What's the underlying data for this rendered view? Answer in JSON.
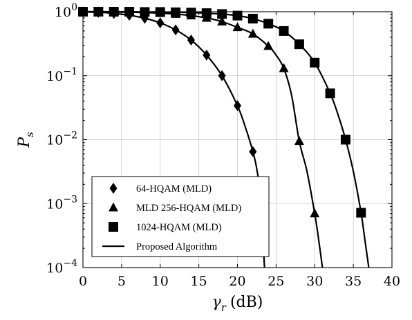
{
  "chart_data": {
    "type": "line",
    "title": "",
    "xlabel": {
      "main": "γ",
      "sub": "r",
      "unit": "(dB)"
    },
    "ylabel": {
      "main": "P",
      "sub": "s"
    },
    "x_ticks": [
      0,
      5,
      10,
      15,
      20,
      25,
      30,
      35,
      40
    ],
    "y_ticks": [
      {
        "value": 0.0001,
        "base": "10",
        "exp": "−4"
      },
      {
        "value": 0.001,
        "base": "10",
        "exp": "−3"
      },
      {
        "value": 0.01,
        "base": "10",
        "exp": "−2"
      },
      {
        "value": 0.1,
        "base": "10",
        "exp": "−1"
      },
      {
        "value": 1,
        "base": "10",
        "exp": "0"
      }
    ],
    "xlim": [
      0,
      40
    ],
    "ylim": [
      0.0001,
      1
    ],
    "yscale": "log",
    "grid": true,
    "legend_position": "bottom-left",
    "series": [
      {
        "name": "64-HQAM (MLD)",
        "marker": "diamond",
        "x": [
          0,
          2,
          4,
          6,
          8,
          10,
          12,
          14,
          16,
          18,
          20,
          22
        ],
        "y": [
          0.99,
          0.98,
          0.94,
          0.88,
          0.79,
          0.67,
          0.52,
          0.36,
          0.21,
          0.1,
          0.034,
          0.0065
        ],
        "curve": {
          "x": [
            0,
            2,
            4,
            6,
            8,
            10,
            12,
            14,
            16,
            18,
            20,
            21,
            22,
            22.5,
            23,
            23.5
          ],
          "y": [
            0.99,
            0.98,
            0.94,
            0.88,
            0.79,
            0.67,
            0.52,
            0.36,
            0.21,
            0.1,
            0.034,
            0.016,
            0.0065,
            0.0035,
            0.0012,
            0.0001
          ]
        }
      },
      {
        "name": "MLD 256-HQAM (MLD)",
        "marker": "triangle",
        "x": [
          0,
          2,
          4,
          6,
          8,
          10,
          12,
          14,
          16,
          18,
          20,
          22,
          24,
          26,
          28,
          30
        ],
        "y": [
          1,
          1,
          0.99,
          0.98,
          0.97,
          0.95,
          0.92,
          0.87,
          0.8,
          0.7,
          0.57,
          0.45,
          0.29,
          0.13,
          0.0095,
          0.0007
        ],
        "curve": {
          "x": [
            0,
            2,
            4,
            6,
            8,
            10,
            12,
            14,
            16,
            18,
            20,
            22,
            24,
            25,
            26,
            27,
            28,
            29,
            30,
            30.5,
            31
          ],
          "y": [
            1,
            1,
            0.99,
            0.98,
            0.97,
            0.95,
            0.92,
            0.87,
            0.8,
            0.7,
            0.57,
            0.45,
            0.29,
            0.21,
            0.13,
            0.05,
            0.0095,
            0.0032,
            0.0007,
            0.00028,
            0.0001
          ]
        }
      },
      {
        "name": "1024-HQAM (MLD)",
        "marker": "square",
        "x": [
          0,
          2,
          4,
          6,
          8,
          10,
          12,
          14,
          16,
          18,
          20,
          22,
          24,
          26,
          28,
          30,
          32,
          34,
          36
        ],
        "y": [
          1,
          1,
          1,
          1,
          0.99,
          0.99,
          0.98,
          0.97,
          0.95,
          0.92,
          0.87,
          0.78,
          0.65,
          0.5,
          0.31,
          0.16,
          0.053,
          0.01,
          0.00072
        ],
        "curve": {
          "x": [
            0,
            2,
            4,
            6,
            8,
            10,
            12,
            14,
            16,
            18,
            20,
            22,
            24,
            26,
            28,
            30,
            32,
            33,
            34,
            35,
            36,
            36.5,
            37
          ],
          "y": [
            1,
            1,
            1,
            1,
            0.99,
            0.99,
            0.98,
            0.97,
            0.95,
            0.92,
            0.87,
            0.78,
            0.65,
            0.5,
            0.31,
            0.16,
            0.053,
            0.025,
            0.01,
            0.0032,
            0.00072,
            0.00027,
            0.0001
          ]
        }
      },
      {
        "name": "Proposed Algorithm",
        "marker": "line",
        "note_line_only": true
      }
    ]
  }
}
